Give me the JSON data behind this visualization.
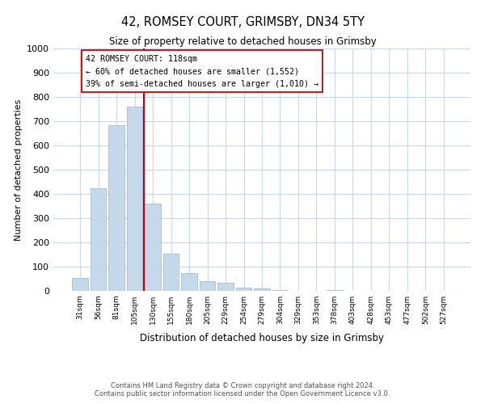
{
  "title": "42, ROMSEY COURT, GRIMSBY, DN34 5TY",
  "subtitle": "Size of property relative to detached houses in Grimsby",
  "xlabel": "Distribution of detached houses by size in Grimsby",
  "ylabel": "Number of detached properties",
  "bar_labels": [
    "31sqm",
    "56sqm",
    "81sqm",
    "105sqm",
    "130sqm",
    "155sqm",
    "180sqm",
    "205sqm",
    "229sqm",
    "254sqm",
    "279sqm",
    "304sqm",
    "329sqm",
    "353sqm",
    "378sqm",
    "403sqm",
    "428sqm",
    "453sqm",
    "477sqm",
    "502sqm",
    "527sqm"
  ],
  "bar_values": [
    52,
    425,
    685,
    760,
    360,
    155,
    75,
    40,
    32,
    15,
    10,
    5,
    0,
    0,
    5,
    0,
    0,
    0,
    0,
    0,
    0
  ],
  "bar_color": "#c5d9ea",
  "bar_edge_color": "#a0bdd4",
  "vline_color": "#cc0000",
  "vline_pos": 3.5,
  "annotation_title": "42 ROMSEY COURT: 118sqm",
  "annotation_line1": "← 60% of detached houses are smaller (1,552)",
  "annotation_line2": "39% of semi-detached houses are larger (1,010) →",
  "annotation_box_color": "#ffffff",
  "annotation_box_edge": "#cc0000",
  "ylim": [
    0,
    1000
  ],
  "yticks": [
    0,
    100,
    200,
    300,
    400,
    500,
    600,
    700,
    800,
    900,
    1000
  ],
  "footer_line1": "Contains HM Land Registry data © Crown copyright and database right 2024.",
  "footer_line2": "Contains public sector information licensed under the Open Government Licence v3.0.",
  "background_color": "#ffffff",
  "grid_color": "#c8d8e8"
}
